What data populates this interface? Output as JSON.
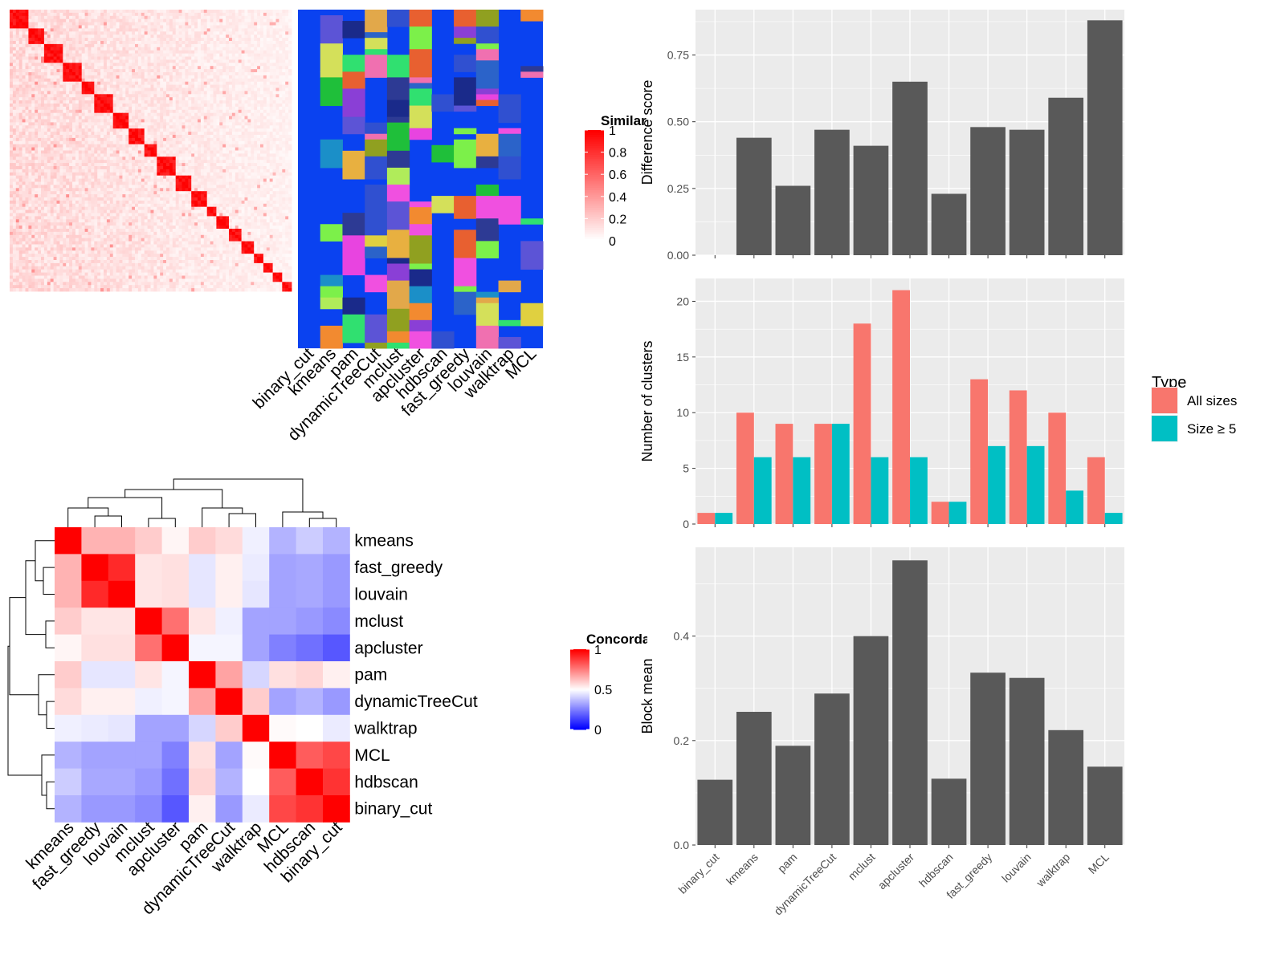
{
  "chart_data": [
    {
      "type": "heatmap",
      "panel": "similarity",
      "legend_title": "Similarity",
      "legend_ticks": [
        "0",
        "0.2",
        "0.4",
        "0.6",
        "0.8",
        "1"
      ],
      "color_range": [
        0,
        1
      ],
      "colors": {
        "low": "#ffffff",
        "high": "#ff0000"
      }
    },
    {
      "type": "heatmap",
      "panel": "cluster-assignments",
      "columns": [
        "binary_cut",
        "kmeans",
        "pam",
        "dynamicTreeCut",
        "mclust",
        "apcluster",
        "hdbscan",
        "fast_greedy",
        "louvain",
        "walktrap",
        "MCL"
      ],
      "background_color": "#0a42f0"
    },
    {
      "type": "bar",
      "panel": "difference-score",
      "categories": [
        "binary_cut",
        "kmeans",
        "pam",
        "dynamicTreeCut",
        "mclust",
        "apcluster",
        "hdbscan",
        "fast_greedy",
        "louvain",
        "walktrap",
        "MCL"
      ],
      "values": [
        0.0,
        0.44,
        0.26,
        0.47,
        0.41,
        0.65,
        0.23,
        0.48,
        0.47,
        0.59,
        0.88
      ],
      "ylabel": "Difference score",
      "ylim": [
        0,
        0.92
      ],
      "yticks": [
        "0.00",
        "0.25",
        "0.50",
        "0.75"
      ],
      "color": "#595959"
    },
    {
      "type": "bar",
      "panel": "number-of-clusters",
      "categories": [
        "binary_cut",
        "kmeans",
        "pam",
        "dynamicTreeCut",
        "mclust",
        "apcluster",
        "hdbscan",
        "fast_greedy",
        "louvain",
        "walktrap",
        "MCL"
      ],
      "series": [
        {
          "name": "All sizes",
          "color": "#f8766d",
          "values": [
            1,
            10,
            9,
            9,
            18,
            21,
            2,
            13,
            12,
            10,
            6
          ]
        },
        {
          "name": "Size ≥ 5",
          "color": "#00bfc4",
          "values": [
            1,
            6,
            6,
            9,
            6,
            6,
            2,
            7,
            7,
            3,
            1
          ]
        }
      ],
      "ylabel": "Number of clusters",
      "ylim": [
        0,
        22.05
      ],
      "yticks": [
        "0",
        "5",
        "10",
        "15",
        "20"
      ],
      "legend_title": "Type",
      "legend_placement": "right"
    },
    {
      "type": "bar",
      "panel": "block-mean",
      "categories": [
        "binary_cut",
        "kmeans",
        "pam",
        "dynamicTreeCut",
        "mclust",
        "apcluster",
        "hdbscan",
        "fast_greedy",
        "louvain",
        "walktrap",
        "MCL"
      ],
      "values": [
        0.125,
        0.255,
        0.19,
        0.29,
        0.4,
        0.545,
        0.127,
        0.33,
        0.32,
        0.22,
        0.15
      ],
      "ylabel": "Block mean",
      "ylim": [
        0,
        0.57
      ],
      "yticks": [
        "0.0",
        "0.2",
        "0.4"
      ],
      "color": "#595959"
    },
    {
      "type": "heatmap",
      "panel": "concordance",
      "legend_title": "Concordance",
      "legend_ticks": [
        "0",
        "0.5",
        "1"
      ],
      "color_range": [
        0,
        1
      ],
      "colors": {
        "low": "#0000ff",
        "mid": "#ffffff",
        "high": "#ff0000"
      },
      "rows": [
        "kmeans",
        "fast_greedy",
        "louvain",
        "mclust",
        "apcluster",
        "pam",
        "dynamicTreeCut",
        "walktrap",
        "MCL",
        "hdbscan",
        "binary_cut"
      ],
      "columns": [
        "kmeans",
        "fast_greedy",
        "louvain",
        "mclust",
        "apcluster",
        "pam",
        "dynamicTreeCut",
        "walktrap",
        "MCL",
        "hdbscan",
        "binary_cut"
      ],
      "matrix": [
        [
          1.0,
          0.65,
          0.65,
          0.6,
          0.52,
          0.6,
          0.57,
          0.47,
          0.35,
          0.4,
          0.35
        ],
        [
          0.65,
          1.0,
          0.92,
          0.55,
          0.56,
          0.45,
          0.53,
          0.46,
          0.32,
          0.33,
          0.3
        ],
        [
          0.65,
          0.92,
          1.0,
          0.55,
          0.56,
          0.45,
          0.53,
          0.45,
          0.32,
          0.33,
          0.3
        ],
        [
          0.6,
          0.55,
          0.55,
          1.0,
          0.78,
          0.55,
          0.47,
          0.32,
          0.32,
          0.3,
          0.27
        ],
        [
          0.52,
          0.56,
          0.56,
          0.78,
          1.0,
          0.48,
          0.48,
          0.32,
          0.25,
          0.22,
          0.17
        ],
        [
          0.6,
          0.45,
          0.45,
          0.55,
          0.48,
          1.0,
          0.68,
          0.42,
          0.56,
          0.58,
          0.53
        ],
        [
          0.57,
          0.53,
          0.53,
          0.47,
          0.48,
          0.68,
          1.0,
          0.6,
          0.32,
          0.35,
          0.3
        ],
        [
          0.47,
          0.46,
          0.45,
          0.32,
          0.32,
          0.42,
          0.6,
          1.0,
          0.51,
          0.5,
          0.46
        ],
        [
          0.35,
          0.32,
          0.32,
          0.32,
          0.25,
          0.56,
          0.32,
          0.51,
          1.0,
          0.82,
          0.86
        ],
        [
          0.4,
          0.33,
          0.33,
          0.3,
          0.22,
          0.58,
          0.35,
          0.5,
          0.82,
          1.0,
          0.9
        ],
        [
          0.35,
          0.3,
          0.3,
          0.27,
          0.17,
          0.53,
          0.3,
          0.46,
          0.86,
          0.9,
          1.0
        ]
      ]
    }
  ]
}
